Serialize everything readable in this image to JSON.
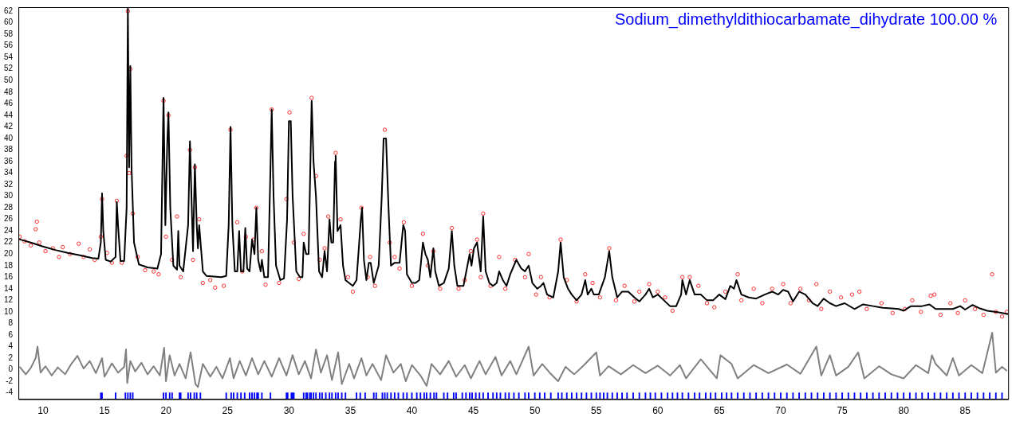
{
  "chart_data": {
    "type": "scatter",
    "xlim": [
      8,
      88.5
    ],
    "ylim": [
      -5.1,
      62.7
    ],
    "xticks": [
      10,
      15,
      20,
      25,
      30,
      35,
      40,
      45,
      50,
      55,
      60,
      65,
      70,
      75,
      80,
      85
    ],
    "yticks": [
      -4,
      -2,
      0,
      2,
      4,
      6,
      8,
      10,
      12,
      14,
      16,
      18,
      20,
      22,
      24,
      26,
      28,
      30,
      32,
      34,
      36,
      38,
      40,
      42,
      44,
      46,
      48,
      50,
      52,
      54,
      56,
      58,
      60,
      62
    ],
    "grid": false,
    "legend": "top right",
    "series": [
      {
        "marker": "circle",
        "color": "#ff0000",
        "x": [
          8.1,
          8.5,
          9.0,
          9.4,
          9.5,
          9.7,
          10.2,
          10.8,
          11.3,
          11.6,
          12.2,
          12.9,
          13.3,
          13.8,
          14.2,
          14.7,
          14.8,
          15.2,
          15.6,
          16.0,
          16.4,
          16.8,
          16.9,
          17.0,
          17.1,
          17.3,
          17.7,
          18.3,
          19.0,
          19.4,
          19.8,
          20.0,
          20.2,
          20.5,
          20.9,
          21.2,
          21.95,
          22.2,
          22.35,
          22.7,
          23.0,
          23.6,
          24.0,
          24.7,
          25.25,
          25.8,
          26.2,
          26.5,
          27.1,
          27.35,
          27.8,
          28.1,
          28.6,
          29.2,
          29.8,
          30.05,
          30.4,
          30.8,
          31.2,
          31.85,
          32.2,
          32.5,
          32.9,
          33.2,
          33.8,
          34.2,
          34.8,
          35.2,
          35.9,
          36.4,
          36.6,
          37.0,
          37.8,
          38.2,
          38.6,
          39.0,
          39.35,
          40.0,
          40.9,
          41.3,
          41.75,
          42.3,
          43.25,
          43.8,
          44.3,
          44.8,
          45.3,
          45.6,
          45.8,
          46.4,
          47.1,
          47.6,
          48.4,
          49.2,
          49.5,
          50.1,
          50.5,
          51.2,
          52.1,
          52.6,
          53.4,
          54.1,
          54.7,
          55.3,
          56.05,
          56.6,
          57.3,
          58.1,
          58.5,
          59.3,
          60.0,
          60.6,
          61.2,
          62.0,
          62.6,
          63.3,
          64.0,
          64.6,
          65.5,
          66.5,
          66.8,
          67.8,
          68.5,
          69.3,
          70.2,
          70.8,
          71.6,
          72.3,
          72.9,
          73.3,
          74.0,
          74.9,
          75.8,
          76.4,
          77.0,
          78.2,
          79.1,
          80.1,
          80.7,
          81.4,
          82.2,
          82.5,
          83.0,
          83.8,
          84.4,
          85.0,
          85.8,
          86.5,
          87.2,
          87.5,
          88.0,
          88.4
        ],
        "values": [
          23,
          22.2,
          21.5,
          24.3,
          25.6,
          22,
          20.5,
          21,
          19.5,
          21.2,
          20,
          21.8,
          19.5,
          20.8,
          19,
          23,
          29.5,
          20.2,
          18.5,
          29.2,
          18.5,
          37,
          62,
          34,
          52,
          27,
          19.5,
          17.2,
          17,
          16.5,
          46.5,
          23,
          44,
          19,
          26.5,
          16,
          38,
          19,
          35,
          26,
          15,
          15.5,
          14.2,
          14.5,
          41.5,
          25.5,
          17,
          23,
          22.5,
          28,
          20.5,
          14.7,
          45,
          15,
          29.5,
          44.5,
          22,
          15.7,
          23.5,
          47,
          33.5,
          19,
          21,
          26.5,
          37.5,
          26,
          16,
          13.5,
          28,
          16,
          19.5,
          14.5,
          41.5,
          22,
          19.5,
          17.5,
          25.5,
          14.5,
          23.5,
          18,
          20.5,
          14,
          24.5,
          14,
          15.5,
          20.5,
          22.5,
          16,
          27,
          14.5,
          19.5,
          14,
          19,
          16,
          20,
          13,
          16,
          12.5,
          22.5,
          15.5,
          11.8,
          16.5,
          15,
          12.5,
          21,
          12,
          14.5,
          11.8,
          13.5,
          14.8,
          13.5,
          12.5,
          10.2,
          16,
          16,
          14.5,
          11.5,
          10.8,
          13.5,
          16.5,
          12,
          14,
          11.5,
          14,
          14.8,
          11.5,
          14,
          12,
          14.8,
          10.5,
          13.5,
          12.5,
          13,
          13.5,
          10.5,
          11.5,
          9.8,
          10.5,
          12,
          10,
          12.8,
          13,
          9.5,
          11.5,
          9.8,
          12,
          10.5,
          9.5,
          16.5,
          10,
          9.2,
          10
        ]
      },
      {
        "type": "line",
        "marker": "none",
        "color": "#000000",
        "x": [
          8,
          9,
          10,
          11,
          12,
          13,
          14,
          14.5,
          14.7,
          14.8,
          14.9,
          15.1,
          15.5,
          15.9,
          16.0,
          16.1,
          16.3,
          16.6,
          16.8,
          16.9,
          17.0,
          17.1,
          17.2,
          17.4,
          17.8,
          18.5,
          19.3,
          19.6,
          19.8,
          19.95,
          20.1,
          20.2,
          20.35,
          20.6,
          20.9,
          21.0,
          21.1,
          21.4,
          21.8,
          21.95,
          22.1,
          22.2,
          22.35,
          22.5,
          22.6,
          22.7,
          22.85,
          23.0,
          23.3,
          24.5,
          24.9,
          25.1,
          25.25,
          25.4,
          25.6,
          25.8,
          25.95,
          26.1,
          26.3,
          26.45,
          26.6,
          26.8,
          27.0,
          27.2,
          27.35,
          27.5,
          27.7,
          27.8,
          28.0,
          28.3,
          28.5,
          28.6,
          28.75,
          28.95,
          29.3,
          29.6,
          29.85,
          30.0,
          30.15,
          30.3,
          30.6,
          30.9,
          31.1,
          31.2,
          31.4,
          31.6,
          31.75,
          31.85,
          32.0,
          32.2,
          32.45,
          32.7,
          32.9,
          33.1,
          33.3,
          33.45,
          33.6,
          33.75,
          33.8,
          33.95,
          34.2,
          34.4,
          34.6,
          35.2,
          35.5,
          35.85,
          35.95,
          36.1,
          36.3,
          36.5,
          36.65,
          36.9,
          37.3,
          37.55,
          37.7,
          37.9,
          38.1,
          38.3,
          38.6,
          39.0,
          39.3,
          39.45,
          39.6,
          40.0,
          40.3,
          40.6,
          40.9,
          41.1,
          41.3,
          41.5,
          41.75,
          41.9,
          42.2,
          42.6,
          43.0,
          43.25,
          43.45,
          43.7,
          44.2,
          44.7,
          44.85,
          45.05,
          45.3,
          45.6,
          45.8,
          46.0,
          46.3,
          46.6,
          46.9,
          47.1,
          47.4,
          47.7,
          48.0,
          48.5,
          48.9,
          49.2,
          49.5,
          49.8,
          50.2,
          50.5,
          50.7,
          51.0,
          51.5,
          51.9,
          52.1,
          52.35,
          52.7,
          53.0,
          53.4,
          53.8,
          54.1,
          54.3,
          54.6,
          54.8,
          55.2,
          55.7,
          56.05,
          56.3,
          56.7,
          57.1,
          57.6,
          58.1,
          58.5,
          59.0,
          59.3,
          59.6,
          60.0,
          60.5,
          61.0,
          61.5,
          61.9,
          62.0,
          62.3,
          62.6,
          63.0,
          63.5,
          64.0,
          64.5,
          65.0,
          65.5,
          65.9,
          66.2,
          66.4,
          66.8,
          67.4,
          68.0,
          68.7,
          69.3,
          69.8,
          70.2,
          70.6,
          71.0,
          71.5,
          72.0,
          72.6,
          73.0,
          73.5,
          74.0,
          74.5,
          75.2,
          76.0,
          76.7,
          77.5,
          78.3,
          79.0,
          79.6,
          80.0,
          80.6,
          81.5,
          82.1,
          82.6,
          83.3,
          84.0,
          84.6,
          85.0,
          85.6,
          86.2,
          86.8,
          87.5,
          88.0,
          88.5
        ],
        "values": [
          22.6,
          22.0,
          21.3,
          20.7,
          20.2,
          19.8,
          19.3,
          19.2,
          22,
          30.5,
          24,
          19,
          18.7,
          19.5,
          29,
          25,
          18.8,
          18.8,
          28,
          62.5,
          35,
          52.5,
          35,
          22,
          18.2,
          17.7,
          17.5,
          20,
          47,
          25,
          39,
          44.5,
          28,
          18,
          17.3,
          24,
          18,
          17.0,
          25,
          39.5,
          28,
          20.5,
          35.5,
          25,
          21,
          25,
          21,
          17,
          16.2,
          16.0,
          16.2,
          25,
          42,
          25,
          17,
          17,
          24,
          17,
          17,
          24.5,
          17.5,
          17,
          22.5,
          20,
          28,
          19,
          17,
          19,
          16,
          16,
          35,
          45,
          30,
          18,
          15.5,
          15.8,
          26,
          43,
          43,
          30,
          17,
          16,
          16,
          22,
          20,
          20,
          36,
          46.5,
          36,
          30,
          17,
          16,
          20.5,
          17,
          26,
          22,
          22,
          36,
          37,
          24,
          25,
          18,
          15.5,
          14.5,
          15.5,
          26,
          28,
          19,
          15.5,
          18.5,
          18.5,
          15,
          18,
          30,
          40,
          40,
          28,
          18,
          18.5,
          18.5,
          25,
          24,
          16.5,
          15,
          15,
          15.5,
          22,
          20,
          19,
          16,
          21,
          17,
          14.5,
          15,
          17.5,
          24,
          18,
          14.5,
          14.5,
          20,
          18,
          21,
          22,
          17,
          26.5,
          17,
          15,
          14.5,
          15,
          17,
          15.5,
          14.5,
          16.5,
          19,
          17.5,
          17,
          18,
          15,
          14,
          14.5,
          15,
          13,
          12.5,
          17,
          22,
          16,
          14,
          13,
          12,
          13,
          15.5,
          13,
          14,
          13,
          13,
          16,
          20.5,
          16,
          12.5,
          13.5,
          13.5,
          12.5,
          11.8,
          13,
          14,
          12.5,
          13,
          12,
          11,
          11,
          13,
          15.5,
          13,
          15.5,
          13,
          13,
          12,
          12,
          13,
          12.2,
          14.5,
          14,
          15.5,
          13,
          12.5,
          12.3,
          13,
          13.5,
          13,
          13.8,
          13.5,
          11.8,
          13.5,
          13,
          11.5,
          11,
          12.3,
          11.5,
          11,
          11.5,
          10.5,
          11.3,
          11,
          10.7,
          10.6,
          10.5,
          10.2,
          11,
          11,
          11.3,
          10.5,
          10.5,
          10.5,
          11,
          10.4,
          11.2,
          10.6,
          10.2,
          10,
          9.8,
          9.6
        ]
      },
      {
        "type": "line",
        "marker": "none",
        "color": "#808080",
        "x": [
          8.1,
          8.6,
          9.0,
          9.4,
          9.55,
          9.8,
          10.2,
          10.7,
          11.2,
          11.8,
          12.3,
          12.8,
          13.3,
          13.8,
          14.3,
          14.8,
          15.0,
          15.6,
          16.1,
          16.6,
          16.75,
          16.85,
          17.1,
          17.5,
          18.0,
          18.5,
          19.0,
          19.5,
          19.85,
          20.0,
          20.3,
          20.7,
          21.1,
          21.6,
          22.0,
          22.4,
          22.6,
          23.0,
          23.6,
          24.1,
          24.6,
          25.2,
          25.5,
          26.0,
          26.5,
          27.0,
          27.5,
          28.0,
          28.6,
          29.2,
          29.8,
          30.3,
          30.8,
          31.3,
          31.8,
          32.2,
          32.6,
          33.1,
          33.5,
          34.0,
          34.3,
          34.9,
          35.3,
          35.9,
          36.3,
          36.8,
          37.5,
          37.9,
          38.5,
          39.1,
          39.5,
          40.0,
          40.7,
          41.2,
          41.6,
          42.3,
          43.0,
          43.6,
          44.3,
          44.8,
          45.5,
          46.0,
          46.8,
          47.3,
          48.0,
          48.5,
          49.5,
          49.9,
          50.6,
          51.2,
          51.9,
          52.5,
          53.2,
          54.0,
          55.0,
          55.3,
          56.0,
          57.0,
          58.0,
          59.0,
          60.0,
          61.0,
          61.8,
          62.3,
          63.5,
          64.8,
          65.1,
          66.0,
          66.5,
          67.8,
          69.0,
          70.5,
          71.6,
          72.9,
          73.3,
          74.0,
          74.5,
          75.5,
          76.3,
          76.8,
          78.0,
          79.0,
          80.0,
          81.0,
          82.0,
          82.3,
          82.6,
          83.5,
          84.0,
          84.5,
          85.5,
          86.4,
          87.2,
          87.5,
          88.0,
          88.4
        ],
        "values": [
          0.5,
          -0.8,
          0.3,
          2,
          4,
          -0.5,
          0.6,
          -1,
          0.4,
          -0.8,
          1,
          2.4,
          0.2,
          1.5,
          -0.6,
          2,
          -1.2,
          1.1,
          -0.5,
          0.5,
          3.5,
          -2.3,
          1.5,
          -0.3,
          1.2,
          -0.8,
          0.6,
          -1,
          3.8,
          -2,
          2.5,
          -1,
          1,
          -1.5,
          3,
          -2.5,
          -3,
          1,
          -1.2,
          0.5,
          -1.5,
          2,
          -1.5,
          1.5,
          -1,
          2,
          -0.8,
          1.5,
          -1.2,
          2,
          -1,
          2.5,
          -0.8,
          1.5,
          -1.5,
          3.5,
          -0.5,
          2.5,
          -1.8,
          3,
          -2.5,
          1,
          -1.5,
          2,
          -1,
          1,
          -1.8,
          2.5,
          -0.5,
          1,
          -2,
          0.8,
          -1,
          -2.8,
          1,
          -0.8,
          1.5,
          -1.2,
          0.8,
          -1.5,
          1.5,
          -0.8,
          2.2,
          -1,
          1.5,
          -0.8,
          4,
          -1,
          1,
          -0.5,
          -2,
          0.5,
          -0.8,
          0.8,
          3,
          -1,
          0.6,
          -0.8,
          0.8,
          -0.6,
          0.7,
          -1,
          0.8,
          -1.5,
          1.8,
          -1.5,
          2.5,
          1,
          -1.5,
          0.8,
          -0.6,
          0.9,
          -0.7,
          4,
          -1,
          2.5,
          -1,
          0.5,
          3,
          -1.5,
          0.6,
          -0.8,
          -1.5,
          0.8,
          -0.6,
          2.5,
          1,
          -1,
          2,
          -1,
          0.8,
          -0.6,
          6.4,
          -0.5,
          0.5,
          -0.2
        ]
      },
      {
        "type": "bar",
        "name": "Sodium_dimethyldithiocarbamate_dihydrate 100.00 %",
        "color": "#0000ff",
        "x": [
          14.7,
          14.8,
          15.9,
          16.7,
          16.9,
          17.1,
          17.3,
          19.8,
          20.0,
          20.3,
          20.5,
          21.1,
          21.2,
          21.8,
          22.0,
          22.3,
          22.5,
          22.8,
          24.9,
          25.3,
          25.5,
          25.8,
          26.1,
          26.4,
          26.8,
          27.0,
          27.2,
          27.4,
          27.5,
          27.8,
          28.5,
          29.8,
          29.9,
          30.2,
          30.3,
          30.4,
          31.2,
          31.4,
          31.5,
          31.7,
          31.8,
          32.0,
          32.2,
          32.5,
          32.7,
          33.0,
          33.3,
          33.5,
          33.8,
          34.0,
          34.3,
          34.6,
          35.5,
          35.8,
          36.2,
          36.9,
          37.1,
          37.6,
          37.8,
          38.0,
          38.3,
          38.6,
          38.9,
          39.3,
          39.6,
          40.0,
          40.4,
          40.7,
          41.0,
          41.2,
          41.5,
          41.8,
          42.0,
          42.6,
          42.9,
          43.4,
          43.6,
          44.1,
          44.4,
          44.7,
          44.9,
          45.2,
          45.5,
          45.8,
          46.2,
          46.6,
          46.9,
          47.2,
          47.6,
          47.9,
          48.3,
          48.7,
          49.2,
          49.5,
          50.0,
          50.4,
          50.8,
          51.3,
          51.9,
          52.2,
          52.6,
          53.0,
          53.4,
          53.8,
          54.2,
          54.6,
          55.0,
          55.3,
          55.6,
          55.9,
          56.3,
          56.7,
          57.1,
          57.5,
          58.0,
          58.5,
          59.0,
          59.4,
          59.8,
          60.3,
          60.8,
          61.2,
          61.6,
          62.0,
          62.5,
          63.0,
          63.4,
          63.9,
          64.3,
          64.7,
          65.2,
          65.6,
          66.0,
          66.5,
          67.0,
          67.5,
          68.0,
          68.5,
          69.0,
          69.5,
          70.0,
          70.5,
          71.0,
          71.5,
          72.0,
          72.5,
          73.0,
          73.5,
          74.0,
          74.5,
          75.0,
          75.5,
          76.0,
          76.5,
          77.0,
          77.5,
          78.0,
          78.5,
          79.0,
          79.5,
          80.0,
          80.5,
          81.0,
          81.5,
          82.0,
          82.5,
          83.0,
          83.5,
          84.0,
          84.5,
          85.0,
          85.5,
          86.0,
          86.5,
          87.0,
          87.5,
          88.0
        ],
        "values": [
          1,
          1,
          1,
          1,
          1,
          1,
          1,
          1,
          1,
          1,
          1,
          1,
          1,
          1,
          1,
          1,
          1,
          1,
          1,
          1,
          1,
          1,
          1,
          1,
          1,
          1,
          1,
          1,
          1,
          1,
          1,
          1,
          1,
          1,
          1,
          1,
          1,
          1,
          1,
          1,
          1,
          1,
          1,
          1,
          1,
          1,
          1,
          1,
          1,
          1,
          1,
          1,
          1,
          1,
          1,
          1,
          1,
          1,
          1,
          1,
          1,
          1,
          1,
          1,
          1,
          1,
          1,
          1,
          1,
          1,
          1,
          1,
          1,
          1,
          1,
          1,
          1,
          1,
          1,
          1,
          1,
          1,
          1,
          1,
          1,
          1,
          1,
          1,
          1,
          1,
          1,
          1,
          1,
          1,
          1,
          1,
          1,
          1,
          1,
          1,
          1,
          1,
          1,
          1,
          1,
          1,
          1,
          1,
          1,
          1,
          1,
          1,
          1,
          1,
          1,
          1,
          1,
          1,
          1,
          1,
          1,
          1,
          1,
          1,
          1,
          1,
          1,
          1,
          1,
          1,
          1,
          1,
          1,
          1,
          1,
          1,
          1,
          1,
          1,
          1,
          1,
          1,
          1,
          1,
          1,
          1,
          1,
          1,
          1,
          1,
          1,
          1,
          1,
          1,
          1,
          1,
          1,
          1,
          1,
          1,
          1,
          1,
          1,
          1,
          1,
          1,
          1,
          1,
          1,
          1,
          1,
          1,
          1,
          1,
          1,
          1,
          1
        ],
        "base": [
          -5,
          -5,
          -5,
          -5,
          -5,
          -5,
          -5,
          -5,
          -5,
          -5,
          -5,
          -5,
          -5,
          -5,
          -5,
          -5,
          -5,
          -5,
          -5,
          -5,
          -5,
          -5,
          -5,
          -5,
          -5,
          -5,
          -5,
          -5,
          -5,
          -5,
          -5,
          -5,
          -5,
          -5,
          -5,
          -5,
          -5,
          -5,
          -5,
          -5,
          -5,
          -5,
          -5,
          -5,
          -5,
          -5,
          -5,
          -5,
          -5,
          -5,
          -5,
          -5,
          -5,
          -5,
          -5,
          -5,
          -5,
          -5,
          -5,
          -5,
          -5,
          -5,
          -5,
          -5,
          -5,
          -5,
          -5,
          -5,
          -5,
          -5,
          -5,
          -5,
          -5,
          -5,
          -5,
          -5,
          -5,
          -5,
          -5,
          -5,
          -5,
          -5,
          -5,
          -5,
          -5,
          -5,
          -5,
          -5,
          -5,
          -5,
          -5,
          -5,
          -5,
          -5,
          -5,
          -5,
          -5,
          -5,
          -5,
          -5,
          -5,
          -5,
          -5,
          -5,
          -5,
          -5,
          -5,
          -5,
          -5,
          -5,
          -5,
          -5,
          -5,
          -5,
          -5,
          -5,
          -5,
          -5,
          -5,
          -5,
          -5,
          -5,
          -5,
          -5,
          -5,
          -5,
          -5,
          -5,
          -5,
          -5,
          -5,
          -5,
          -5,
          -5,
          -5,
          -5,
          -5,
          -5,
          -5,
          -5,
          -5,
          -5,
          -5,
          -5,
          -5,
          -5,
          -5,
          -5,
          -5,
          -5,
          -5,
          -5,
          -5,
          -5,
          -5,
          -5,
          -5,
          -5,
          -5,
          -5,
          -5,
          -5,
          -5,
          -5,
          -5,
          -5,
          -5,
          -5,
          -5,
          -5,
          -5,
          -5,
          -5,
          -5,
          -5,
          -5,
          -5
        ]
      }
    ]
  }
}
